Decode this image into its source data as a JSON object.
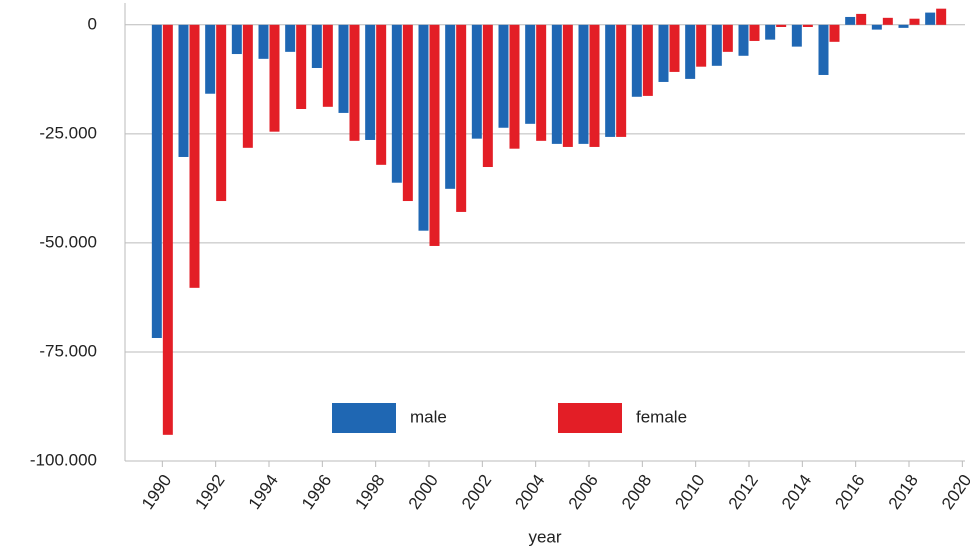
{
  "chart_data": {
    "type": "bar",
    "x_label": "year",
    "x": [
      1990,
      1991,
      1992,
      1993,
      1994,
      1995,
      1996,
      1997,
      1998,
      1999,
      2000,
      2001,
      2002,
      2003,
      2004,
      2005,
      2006,
      2007,
      2008,
      2009,
      2010,
      2011,
      2012,
      2013,
      2014,
      2015,
      2016,
      2017,
      2018,
      2019
    ],
    "xlim": [
      1988.6,
      2020.1
    ],
    "xticks": [
      1990,
      1992,
      1994,
      1996,
      1998,
      2000,
      2002,
      2004,
      2006,
      2008,
      2010,
      2012,
      2014,
      2016,
      2018,
      2020
    ],
    "ylim": [
      -100000,
      5000
    ],
    "yticks": [
      {
        "value": -100000,
        "label": "-100.000"
      },
      {
        "value": -75000,
        "label": "-75.000"
      },
      {
        "value": -50000,
        "label": "-50.000"
      },
      {
        "value": -25000,
        "label": "-25.000"
      },
      0
    ],
    "grid": true,
    "series": [
      {
        "name": "male",
        "color": "#1f67b3",
        "values": [
          -71800,
          -30300,
          -15800,
          -6700,
          -7800,
          -6200,
          -9900,
          -20200,
          -26400,
          -36200,
          -47200,
          -37600,
          -26100,
          -23600,
          -22700,
          -27300,
          -27300,
          -25700,
          -16500,
          -13100,
          -12400,
          -9400,
          -7100,
          -3400,
          -5000,
          -11500,
          1800,
          -1100,
          -700,
          2800
        ]
      },
      {
        "name": "female",
        "color": "#e31e26",
        "values": [
          -94000,
          -60300,
          -40400,
          -28200,
          -24500,
          -19300,
          -18800,
          -26600,
          -32100,
          -40400,
          -50700,
          -42900,
          -32600,
          -28400,
          -26600,
          -28000,
          -28000,
          -25700,
          -16300,
          -10800,
          -9600,
          -6200,
          -3700,
          -500,
          -500,
          -3900,
          2500,
          1600,
          1400,
          3700
        ]
      }
    ]
  }
}
